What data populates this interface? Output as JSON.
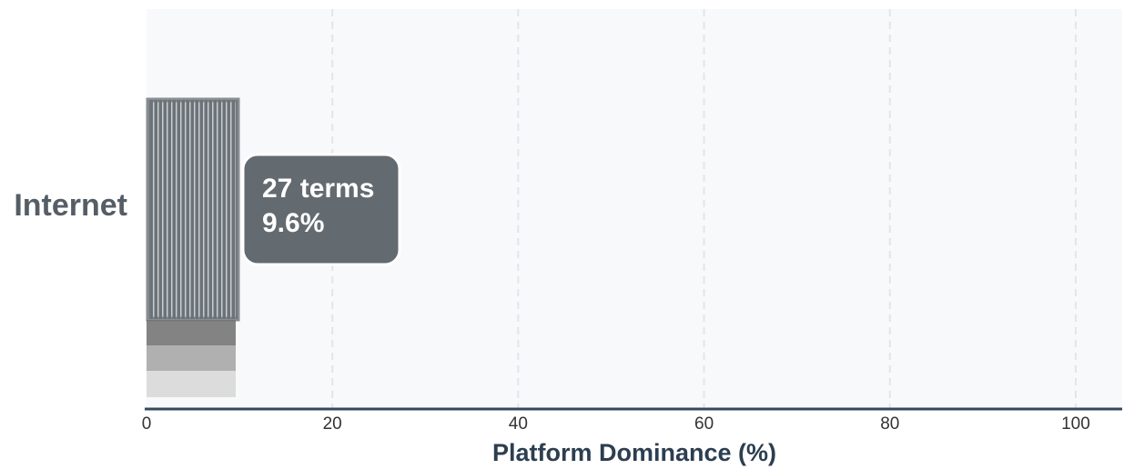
{
  "chart_data": {
    "type": "hbar",
    "categories": [
      "Internet"
    ],
    "values": [
      9.6
    ],
    "value_labels": [
      "9.6%"
    ],
    "annotations": [
      "27 terms"
    ],
    "color": "#6c7378",
    "xlabel": "Platform Dominance (%)",
    "xlim": [
      0,
      105
    ],
    "xticks": [
      0,
      20,
      40,
      60,
      80,
      100
    ],
    "grid": true
  }
}
